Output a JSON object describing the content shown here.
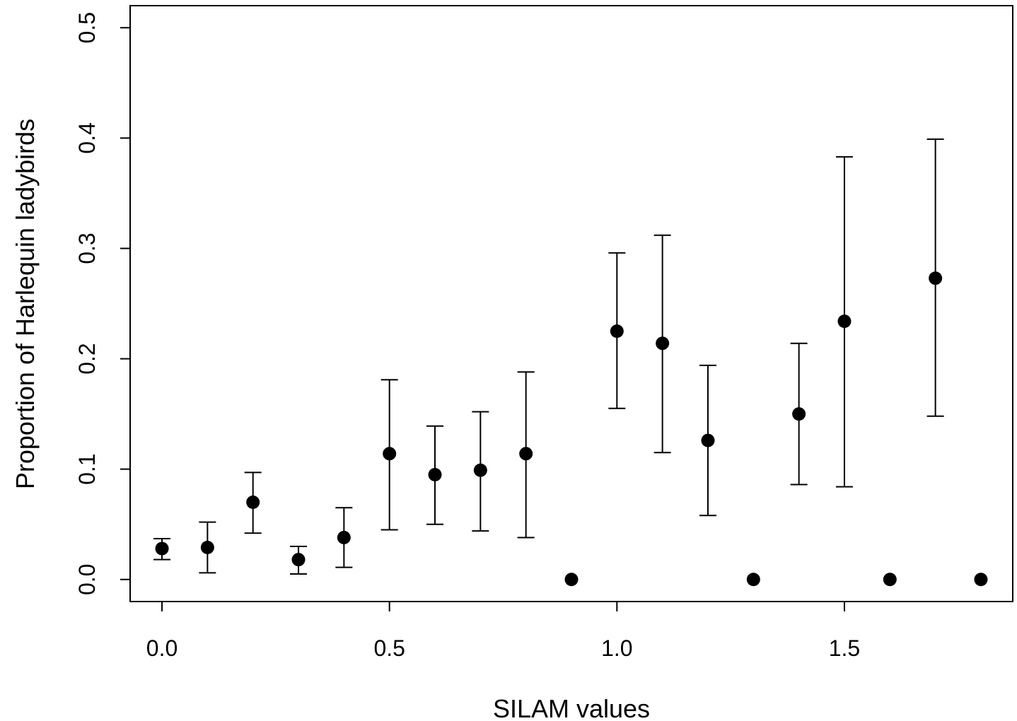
{
  "chart_data": {
    "type": "scatter",
    "title": "",
    "xlabel": "SILAM values",
    "ylabel": "Proportion of Harlequin ladybirds",
    "xlim": [
      -0.07,
      1.87
    ],
    "ylim": [
      -0.02,
      0.52
    ],
    "xticks": [
      0.0,
      0.5,
      1.0,
      1.5
    ],
    "xtick_labels": [
      "0.0",
      "0.5",
      "1.0",
      "1.5"
    ],
    "yticks": [
      0.0,
      0.1,
      0.2,
      0.3,
      0.4,
      0.5
    ],
    "ytick_labels": [
      "0.0",
      "0.1",
      "0.2",
      "0.3",
      "0.4",
      "0.5"
    ],
    "grid": false,
    "legend": "none",
    "marker_color": "#000000",
    "points": [
      {
        "x": 0.0,
        "y": 0.028,
        "low": 0.018,
        "high": 0.037
      },
      {
        "x": 0.1,
        "y": 0.029,
        "low": 0.006,
        "high": 0.052
      },
      {
        "x": 0.2,
        "y": 0.07,
        "low": 0.042,
        "high": 0.097
      },
      {
        "x": 0.3,
        "y": 0.018,
        "low": 0.005,
        "high": 0.03
      },
      {
        "x": 0.4,
        "y": 0.038,
        "low": 0.011,
        "high": 0.065
      },
      {
        "x": 0.5,
        "y": 0.114,
        "low": 0.045,
        "high": 0.181
      },
      {
        "x": 0.6,
        "y": 0.095,
        "low": 0.05,
        "high": 0.139
      },
      {
        "x": 0.7,
        "y": 0.099,
        "low": 0.044,
        "high": 0.152
      },
      {
        "x": 0.8,
        "y": 0.114,
        "low": 0.038,
        "high": 0.188
      },
      {
        "x": 0.9,
        "y": 0.0,
        "low": null,
        "high": null
      },
      {
        "x": 1.0,
        "y": 0.225,
        "low": 0.155,
        "high": 0.296
      },
      {
        "x": 1.1,
        "y": 0.214,
        "low": 0.115,
        "high": 0.312
      },
      {
        "x": 1.2,
        "y": 0.126,
        "low": 0.058,
        "high": 0.194
      },
      {
        "x": 1.3,
        "y": 0.0,
        "low": null,
        "high": null
      },
      {
        "x": 1.4,
        "y": 0.15,
        "low": 0.086,
        "high": 0.214
      },
      {
        "x": 1.5,
        "y": 0.234,
        "low": 0.084,
        "high": 0.383
      },
      {
        "x": 1.6,
        "y": 0.0,
        "low": null,
        "high": null
      },
      {
        "x": 1.7,
        "y": 0.273,
        "low": 0.148,
        "high": 0.399
      },
      {
        "x": 1.8,
        "y": 0.0,
        "low": null,
        "high": null
      }
    ]
  }
}
